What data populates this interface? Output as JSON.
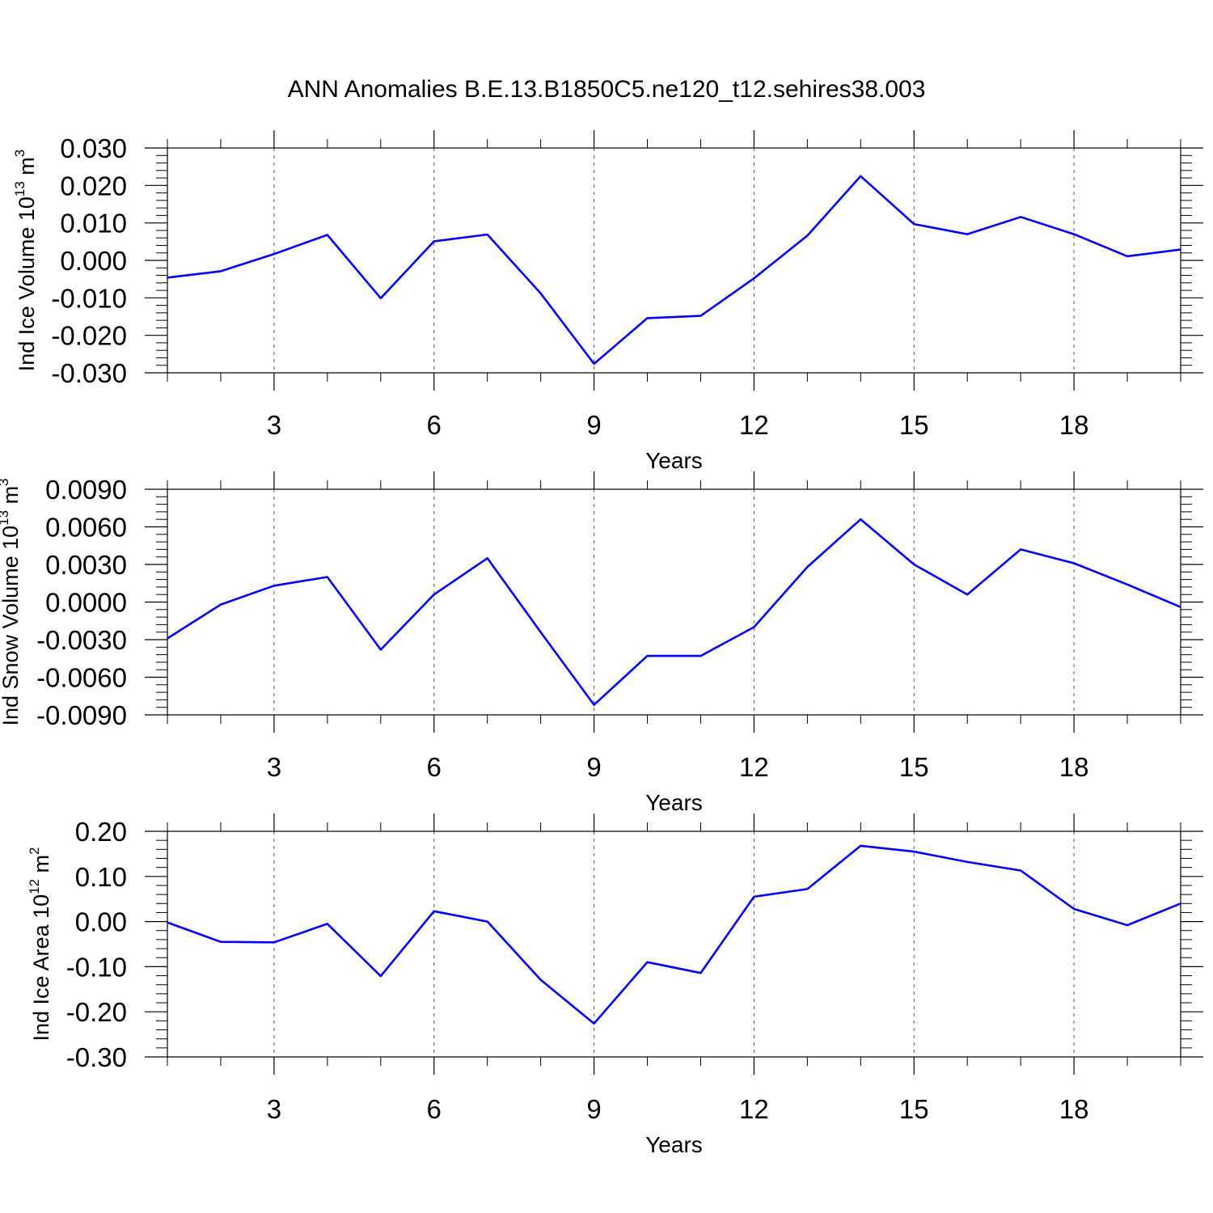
{
  "figure_title": "ANN Anomalies B.E.13.B1850C5.ne120_t12.sehires38.003",
  "line_color": "#0000ff",
  "chart_data": [
    {
      "type": "line",
      "title": "",
      "xlabel": "Years",
      "ylabel": {
        "main": "Ind Ice Volume 10",
        "sup1": "13",
        "unit": " m",
        "sup2": "3"
      },
      "x": [
        1,
        2,
        3,
        4,
        5,
        6,
        7,
        8,
        9,
        10,
        11,
        12,
        13,
        14,
        15,
        16,
        17,
        18,
        19,
        20
      ],
      "xlim": [
        1,
        20
      ],
      "xticks": [
        3,
        6,
        9,
        12,
        15,
        18
      ],
      "xtick_labels": [
        "3",
        "6",
        "9",
        "12",
        "15",
        "18"
      ],
      "ylim": [
        -0.03,
        0.03
      ],
      "yticks": [
        -0.03,
        -0.02,
        -0.01,
        0.0,
        0.01,
        0.02,
        0.03
      ],
      "ytick_labels": [
        "-0.030",
        "-0.020",
        "-0.010",
        "0.000",
        "0.010",
        "0.020",
        "0.030"
      ],
      "grid": "dashed vertical at x ticks",
      "series": [
        {
          "values": [
            -0.0046,
            -0.0029,
            0.0017,
            0.0068,
            -0.0101,
            0.0051,
            0.0069,
            -0.0088,
            -0.0276,
            -0.0154,
            -0.0148,
            -0.0048,
            0.0066,
            0.0225,
            0.0097,
            0.007,
            0.0116,
            0.007,
            0.0011,
            0.0029
          ]
        }
      ]
    },
    {
      "type": "line",
      "title": "",
      "xlabel": "Years",
      "ylabel": {
        "main": "Ind Snow Volume 10",
        "sup1": "13",
        "unit": " m",
        "sup2": "3"
      },
      "x": [
        1,
        2,
        3,
        4,
        5,
        6,
        7,
        8,
        9,
        10,
        11,
        12,
        13,
        14,
        15,
        16,
        17,
        18,
        19,
        20
      ],
      "xlim": [
        1,
        20
      ],
      "xticks": [
        3,
        6,
        9,
        12,
        15,
        18
      ],
      "xtick_labels": [
        "3",
        "6",
        "9",
        "12",
        "15",
        "18"
      ],
      "ylim": [
        -0.009,
        0.009
      ],
      "yticks": [
        -0.009,
        -0.006,
        -0.003,
        0.0,
        0.003,
        0.006,
        0.009
      ],
      "ytick_labels": [
        "-0.0090",
        "-0.0060",
        "-0.0030",
        "0.0000",
        "0.0030",
        "0.0060",
        "0.0090"
      ],
      "grid": "dashed vertical at x ticks",
      "series": [
        {
          "values": [
            -0.0029,
            -0.0002,
            0.0013,
            0.002,
            -0.0038,
            0.0006,
            0.0035,
            -0.0024,
            -0.0082,
            -0.0043,
            -0.0043,
            -0.002,
            0.0028,
            0.0066,
            0.003,
            0.0006,
            0.0042,
            0.0031,
            0.0014,
            -0.0004
          ]
        }
      ]
    },
    {
      "type": "line",
      "title": "",
      "xlabel": "Years",
      "ylabel": {
        "main": "Ind Ice Area 10",
        "sup1": "12",
        "unit": " m",
        "sup2": "2"
      },
      "x": [
        1,
        2,
        3,
        4,
        5,
        6,
        7,
        8,
        9,
        10,
        11,
        12,
        13,
        14,
        15,
        16,
        17,
        18,
        19,
        20
      ],
      "xlim": [
        1,
        20
      ],
      "xticks": [
        3,
        6,
        9,
        12,
        15,
        18
      ],
      "xtick_labels": [
        "3",
        "6",
        "9",
        "12",
        "15",
        "18"
      ],
      "ylim": [
        -0.3,
        0.2
      ],
      "yticks": [
        -0.3,
        -0.2,
        -0.1,
        0.0,
        0.1,
        0.2
      ],
      "ytick_labels": [
        "-0.30",
        "-0.20",
        "-0.10",
        "0.00",
        "0.10",
        "0.20"
      ],
      "grid": "dashed vertical at x ticks",
      "series": [
        {
          "values": [
            -0.002,
            -0.045,
            -0.046,
            -0.005,
            -0.121,
            0.023,
            0.0,
            -0.129,
            -0.226,
            -0.09,
            -0.114,
            0.055,
            0.072,
            0.168,
            0.155,
            0.132,
            0.113,
            0.028,
            -0.008,
            0.04
          ]
        }
      ]
    }
  ]
}
